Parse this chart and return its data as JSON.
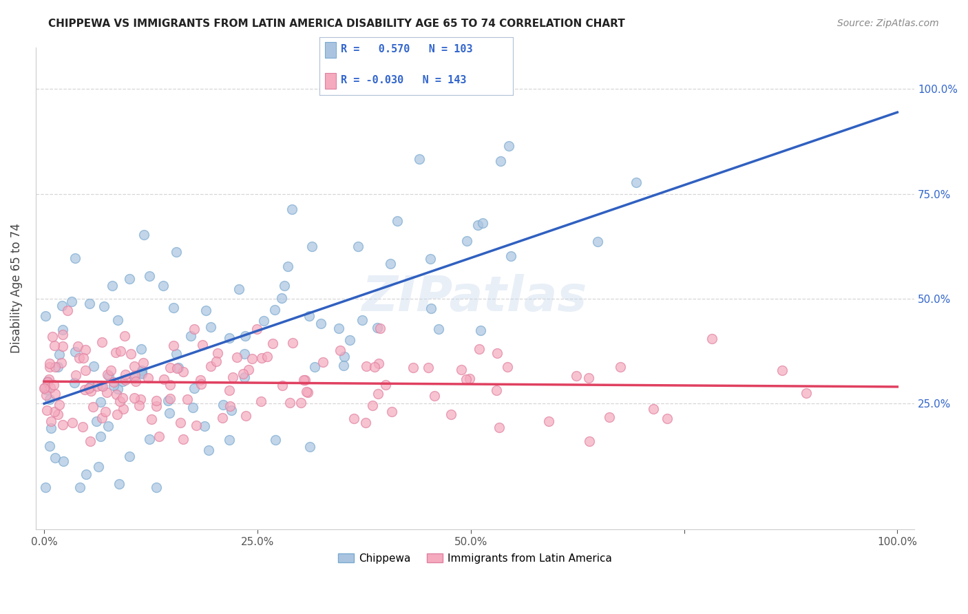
{
  "title": "CHIPPEWA VS IMMIGRANTS FROM LATIN AMERICA DISABILITY AGE 65 TO 74 CORRELATION CHART",
  "source": "Source: ZipAtlas.com",
  "ylabel": "Disability Age 65 to 74",
  "xlim": [
    -0.01,
    1.02
  ],
  "ylim": [
    -0.05,
    1.1
  ],
  "x_ticks": [
    0.0,
    0.25,
    0.5,
    0.75,
    1.0
  ],
  "x_tick_labels": [
    "0.0%",
    "25.0%",
    "50.0%",
    "",
    "100.0%"
  ],
  "y_ticks": [
    0.25,
    0.5,
    0.75,
    1.0
  ],
  "y_tick_labels": [
    "25.0%",
    "50.0%",
    "75.0%",
    "100.0%"
  ],
  "chippewa_R": 0.57,
  "chippewa_N": 103,
  "latin_R": -0.03,
  "latin_N": 143,
  "chippewa_color": "#aac4e0",
  "latin_color": "#f5aabe",
  "chippewa_edge_color": "#7aaad0",
  "latin_edge_color": "#e080a0",
  "chippewa_line_color": "#3060c0",
  "latin_line_color": "#e04060",
  "legend_text_color": "#3366cc",
  "legend_border_color": "#b8c8e8",
  "background_color": "#ffffff",
  "grid_color": "#cccccc",
  "watermark_color": "#d8e4f0",
  "title_color": "#222222",
  "source_color": "#888888",
  "tick_color": "#555555"
}
